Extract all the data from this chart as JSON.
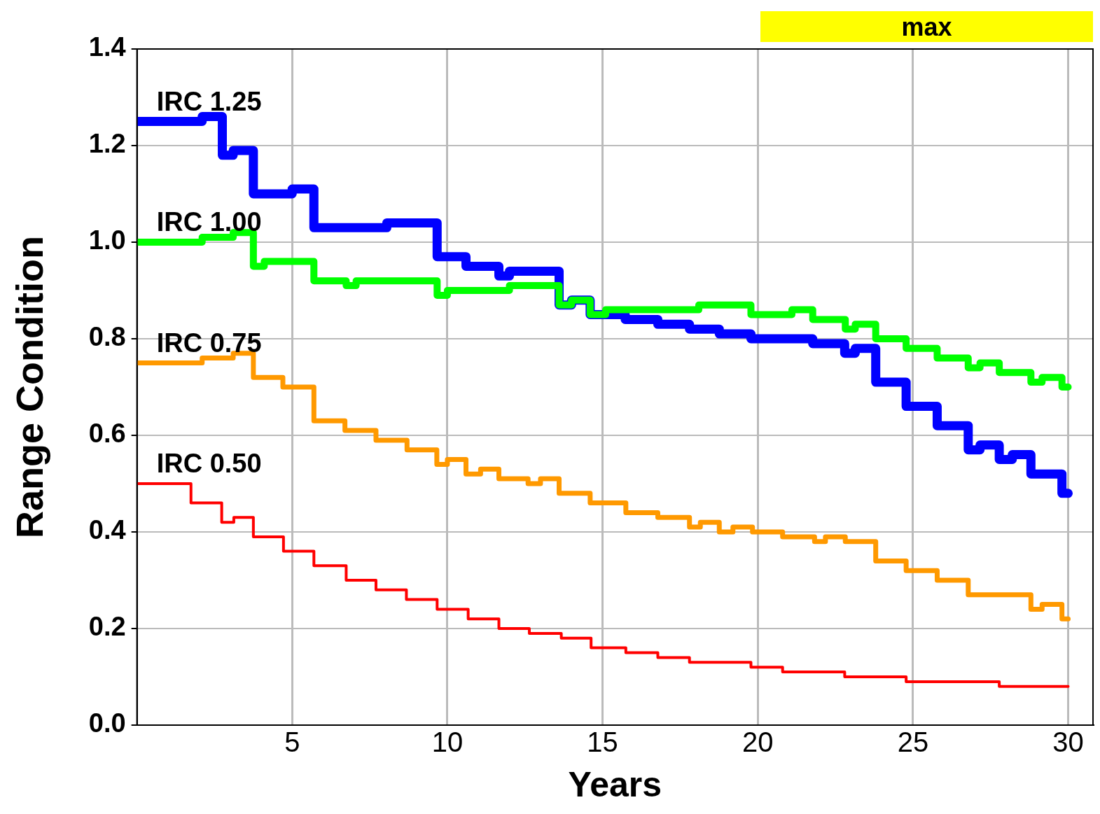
{
  "chart_data": {
    "type": "step",
    "xlabel": "Years",
    "ylabel": "Range Condition",
    "xlim": [
      0,
      30.8
    ],
    "ylim": [
      0,
      1.4
    ],
    "xticks": [
      5,
      10,
      15,
      20,
      25,
      30
    ],
    "yticks": [
      {
        "value": 0,
        "label": "0.0"
      },
      {
        "value": 0.2,
        "label": "0.2"
      },
      {
        "value": 0.4,
        "label": "0.4"
      },
      {
        "value": 0.6,
        "label": "0.6"
      },
      {
        "value": 0.8,
        "label": "0.8"
      },
      {
        "value": 1,
        "label": "1.0"
      },
      {
        "value": 1.2,
        "label": "1.2"
      },
      {
        "value": 1.4,
        "label": "1.4"
      }
    ],
    "grid": true,
    "legend": false,
    "marker": "none",
    "line_style": "solid",
    "annotations": [
      "max"
    ],
    "series": [
      {
        "name": "IRC 1.25",
        "color": "#0000ff",
        "x": [
          0,
          2.1,
          2.75,
          3.1,
          3.75,
          5.0,
          5.7,
          8.05,
          9.67,
          10.6,
          11.66,
          12.0,
          13.6,
          14.0,
          14.6,
          15.73,
          16.78,
          17.8,
          18.76,
          19.78,
          21.77,
          22.8,
          23.14,
          23.8,
          24.78,
          25.78,
          26.78,
          27.16,
          27.78,
          28.2,
          28.8,
          29.8,
          30
        ],
        "values": [
          1.25,
          1.26,
          1.18,
          1.19,
          1.1,
          1.11,
          1.03,
          1.04,
          0.97,
          0.95,
          0.93,
          0.94,
          0.87,
          0.88,
          0.85,
          0.84,
          0.83,
          0.82,
          0.81,
          0.8,
          0.79,
          0.77,
          0.78,
          0.71,
          0.66,
          0.62,
          0.57,
          0.58,
          0.55,
          0.56,
          0.52,
          0.48,
          0.48
        ]
      },
      {
        "name": "IRC 1.00",
        "color": "#00ff00",
        "x": [
          0,
          2.1,
          3.1,
          3.75,
          4.1,
          5.7,
          6.74,
          7.06,
          9.67,
          10.0,
          12.0,
          13.6,
          14.0,
          14.6,
          15.1,
          18.1,
          19.78,
          21.1,
          21.77,
          22.82,
          23.14,
          23.8,
          24.78,
          25.78,
          26.78,
          27.16,
          27.78,
          28.8,
          29.16,
          29.8,
          30
        ],
        "values": [
          1.0,
          1.01,
          1.02,
          0.95,
          0.96,
          0.92,
          0.91,
          0.92,
          0.89,
          0.9,
          0.91,
          0.87,
          0.88,
          0.85,
          0.86,
          0.87,
          0.85,
          0.86,
          0.84,
          0.82,
          0.83,
          0.8,
          0.78,
          0.76,
          0.74,
          0.75,
          0.73,
          0.71,
          0.72,
          0.7,
          0.7
        ]
      },
      {
        "name": "IRC 0.75",
        "color": "#ff9900",
        "x": [
          0,
          2.1,
          3.1,
          3.75,
          4.7,
          5.7,
          6.7,
          7.7,
          8.7,
          9.66,
          10.0,
          10.6,
          11.07,
          11.66,
          12.6,
          13.0,
          13.6,
          14.6,
          15.75,
          16.78,
          17.8,
          18.15,
          18.76,
          19.2,
          19.83,
          20.8,
          21.83,
          22.18,
          22.82,
          23.8,
          24.78,
          25.78,
          26.78,
          28.8,
          29.16,
          29.8,
          30
        ],
        "values": [
          0.75,
          0.76,
          0.77,
          0.72,
          0.7,
          0.63,
          0.61,
          0.59,
          0.57,
          0.54,
          0.55,
          0.52,
          0.53,
          0.51,
          0.5,
          0.51,
          0.48,
          0.46,
          0.44,
          0.43,
          0.41,
          0.42,
          0.4,
          0.41,
          0.4,
          0.39,
          0.38,
          0.39,
          0.38,
          0.34,
          0.32,
          0.3,
          0.27,
          0.24,
          0.25,
          0.22,
          0.22
        ]
      },
      {
        "name": "IRC 0.50",
        "color": "#ff0000",
        "x": [
          0,
          1.74,
          2.73,
          3.12,
          3.75,
          4.72,
          5.7,
          6.74,
          7.7,
          8.68,
          9.67,
          10.67,
          11.66,
          12.64,
          13.67,
          14.63,
          15.75,
          16.78,
          17.8,
          19.78,
          20.8,
          22.8,
          24.78,
          27.78,
          30
        ],
        "values": [
          0.5,
          0.46,
          0.42,
          0.43,
          0.39,
          0.36,
          0.33,
          0.3,
          0.28,
          0.26,
          0.24,
          0.22,
          0.2,
          0.19,
          0.18,
          0.16,
          0.15,
          0.14,
          0.13,
          0.12,
          0.11,
          0.1,
          0.09,
          0.08,
          0.08
        ]
      }
    ]
  }
}
